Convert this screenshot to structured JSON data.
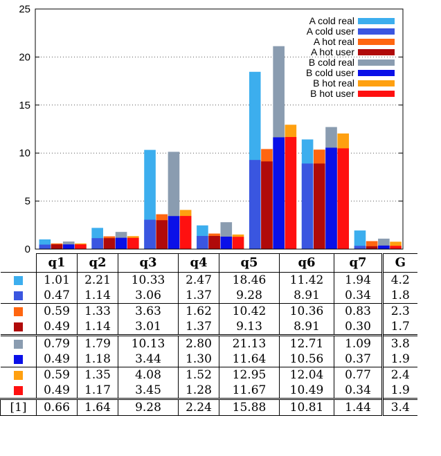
{
  "chart_data": {
    "type": "bar",
    "categories": [
      "q1",
      "q2",
      "q3",
      "q4",
      "q5",
      "q6",
      "q7"
    ],
    "ylim": [
      0,
      25
    ],
    "yticks": [
      0,
      5,
      10,
      15,
      20,
      25
    ],
    "grid": "horizontal dotted",
    "legend_position": "top-right",
    "series": [
      {
        "name": "A cold real",
        "color": "#3caeee",
        "values": [
          1.01,
          2.21,
          10.33,
          2.47,
          18.46,
          11.42,
          1.94
        ]
      },
      {
        "name": "A cold user",
        "color": "#3a56e0",
        "values": [
          0.47,
          1.14,
          3.06,
          1.37,
          9.28,
          8.91,
          0.34
        ]
      },
      {
        "name": "A hot real",
        "color": "#ff6610",
        "values": [
          0.59,
          1.33,
          3.63,
          1.62,
          10.42,
          10.36,
          0.83
        ]
      },
      {
        "name": "A hot user",
        "color": "#b00a0a",
        "values": [
          0.49,
          1.14,
          3.01,
          1.37,
          9.13,
          8.91,
          0.3
        ]
      },
      {
        "name": "B cold real",
        "color": "#8a9cb0",
        "values": [
          0.79,
          1.79,
          10.13,
          2.8,
          21.13,
          12.71,
          1.09
        ]
      },
      {
        "name": "B cold user",
        "color": "#0a10e8",
        "values": [
          0.49,
          1.18,
          3.44,
          1.3,
          11.64,
          10.56,
          0.37
        ]
      },
      {
        "name": "B hot real",
        "color": "#ffa010",
        "values": [
          0.59,
          1.35,
          4.08,
          1.52,
          12.95,
          12.04,
          0.77
        ]
      },
      {
        "name": "B hot user",
        "color": "#ff1010",
        "values": [
          0.49,
          1.17,
          3.45,
          1.28,
          11.67,
          10.49,
          0.34
        ]
      }
    ]
  },
  "table": {
    "headers": [
      "q1",
      "q2",
      "q3",
      "q4",
      "q5",
      "q6",
      "q7",
      "G"
    ],
    "rows": [
      {
        "series_index": 0,
        "cells": [
          "1.01",
          "2.21",
          "10.33",
          "2.47",
          "18.46",
          "11.42",
          "1.94",
          "4.2"
        ]
      },
      {
        "series_index": 1,
        "cells": [
          "0.47",
          "1.14",
          "3.06",
          "1.37",
          "9.28",
          "8.91",
          "0.34",
          "1.8"
        ]
      },
      {
        "series_index": 2,
        "cells": [
          "0.59",
          "1.33",
          "3.63",
          "1.62",
          "10.42",
          "10.36",
          "0.83",
          "2.3"
        ]
      },
      {
        "series_index": 3,
        "cells": [
          "0.49",
          "1.14",
          "3.01",
          "1.37",
          "9.13",
          "8.91",
          "0.30",
          "1.7"
        ]
      },
      {
        "series_index": 4,
        "cells": [
          "0.79",
          "1.79",
          "10.13",
          "2.80",
          "21.13",
          "12.71",
          "1.09",
          "3.8"
        ]
      },
      {
        "series_index": 5,
        "cells": [
          "0.49",
          "1.18",
          "3.44",
          "1.30",
          "11.64",
          "10.56",
          "0.37",
          "1.9"
        ]
      },
      {
        "series_index": 6,
        "cells": [
          "0.59",
          "1.35",
          "4.08",
          "1.52",
          "12.95",
          "12.04",
          "0.77",
          "2.4"
        ]
      },
      {
        "series_index": 7,
        "cells": [
          "0.49",
          "1.17",
          "3.45",
          "1.28",
          "11.67",
          "10.49",
          "0.34",
          "1.9"
        ]
      }
    ],
    "reference_row": {
      "label": "[1]",
      "cells": [
        "0.66",
        "1.64",
        "9.28",
        "2.24",
        "15.88",
        "10.81",
        "1.44",
        "3.4"
      ]
    }
  }
}
